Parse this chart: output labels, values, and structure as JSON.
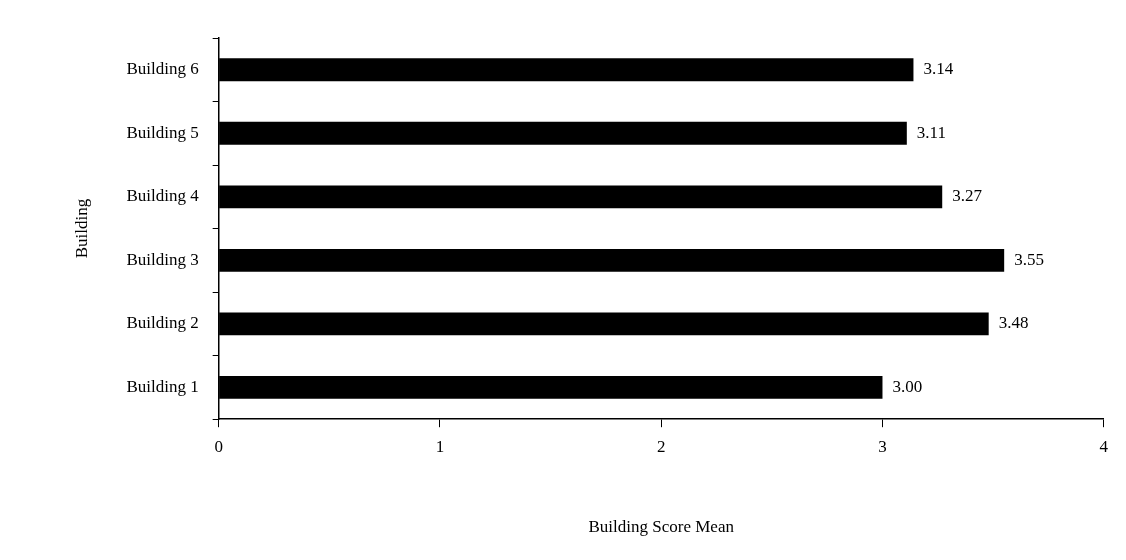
{
  "chart_data": {
    "type": "bar",
    "orientation": "horizontal",
    "xlabel": "Building Score Mean",
    "ylabel": "Building",
    "categories": [
      "Building 6",
      "Building 5",
      "Building 4",
      "Building 3",
      "Building 2",
      "Building 1"
    ],
    "values": [
      3.14,
      3.11,
      3.27,
      3.55,
      3.48,
      3.0
    ],
    "value_labels": [
      "3.14",
      "3.11",
      "3.27",
      "3.55",
      "3.48",
      "3.00"
    ],
    "color": "#000000",
    "xlim": [
      0,
      4
    ],
    "xticks": [
      0,
      1,
      2,
      3,
      4
    ]
  }
}
